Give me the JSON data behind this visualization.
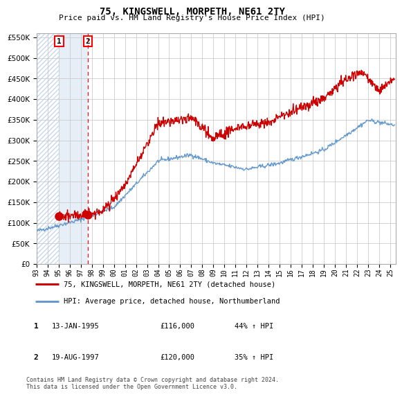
{
  "title": "75, KINGSWELL, MORPETH, NE61 2TY",
  "subtitle": "Price paid vs. HM Land Registry's House Price Index (HPI)",
  "ylabel_ticks": [
    0,
    50000,
    100000,
    150000,
    200000,
    250000,
    300000,
    350000,
    400000,
    450000,
    500000,
    550000
  ],
  "ymax": 560000,
  "ymin": 0,
  "xmin": 1993.0,
  "xmax": 2025.5,
  "sale1_date": 1995.04,
  "sale1_price": 116000,
  "sale2_date": 1997.64,
  "sale2_price": 120000,
  "legend_line1": "75, KINGSWELL, MORPETH, NE61 2TY (detached house)",
  "legend_line2": "HPI: Average price, detached house, Northumberland",
  "table_row1": [
    "1",
    "13-JAN-1995",
    "£116,000",
    "44% ↑ HPI"
  ],
  "table_row2": [
    "2",
    "19-AUG-1997",
    "£120,000",
    "35% ↑ HPI"
  ],
  "footnote": "Contains HM Land Registry data © Crown copyright and database right 2024.\nThis data is licensed under the Open Government Licence v3.0.",
  "line_red": "#cc0000",
  "line_blue": "#6699cc",
  "grid_color": "#cccccc",
  "bg_hatch_color": "#c8d8ee",
  "bg_light_blue": "#dce8f5"
}
